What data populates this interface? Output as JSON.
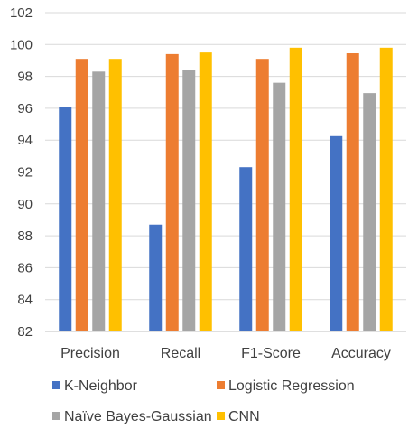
{
  "chart_data": {
    "type": "bar",
    "categories": [
      "Precision",
      "Recall",
      "F1-Score",
      "Accuracy"
    ],
    "series": [
      {
        "name": "K-Neighbor",
        "color": "#4472C4",
        "values": [
          96.1,
          88.7,
          92.3,
          94.25
        ]
      },
      {
        "name": "Logistic Regression",
        "color": "#ED7D31",
        "values": [
          99.1,
          99.4,
          99.1,
          99.45
        ]
      },
      {
        "name": "Naïve Bayes-Gaussian",
        "color": "#A5A5A5",
        "values": [
          98.3,
          98.4,
          97.6,
          96.95
        ]
      },
      {
        "name": "CNN",
        "color": "#FFC000",
        "values": [
          99.1,
          99.5,
          99.8,
          99.8
        ]
      }
    ],
    "ylim": [
      82,
      102
    ],
    "yticks": [
      82,
      84,
      86,
      88,
      90,
      92,
      94,
      96,
      98,
      100,
      102
    ],
    "title": "",
    "xlabel": "",
    "ylabel": "",
    "grid": true,
    "legend_position": "bottom"
  }
}
